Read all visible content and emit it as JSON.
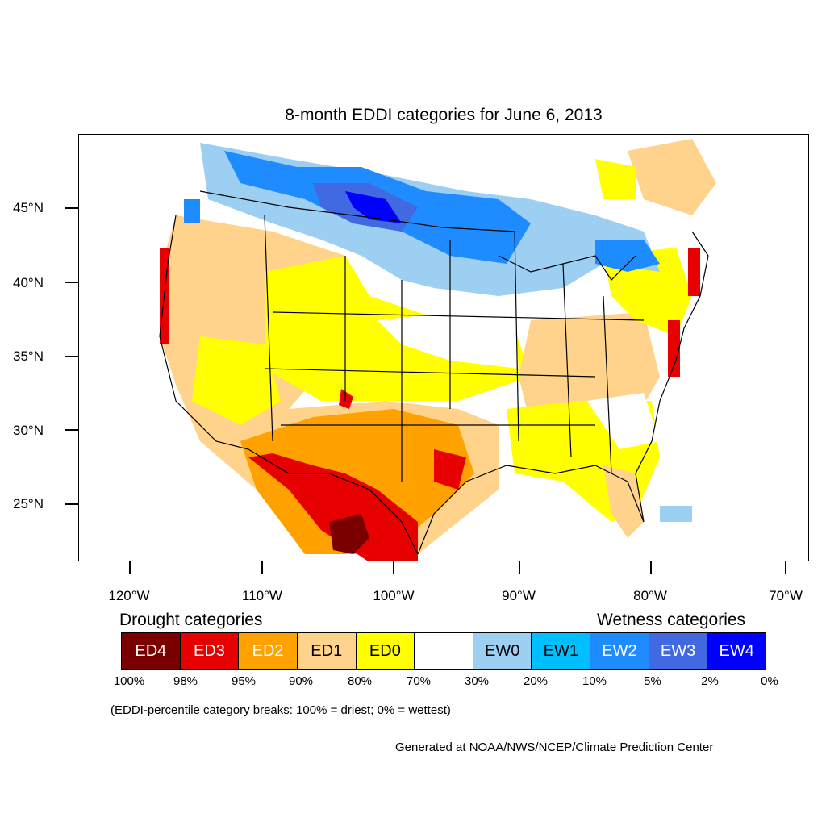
{
  "title": "8-month EDDI categories for June 6, 2013",
  "map": {
    "lat_labels": [
      "45°N",
      "40°N",
      "35°N",
      "30°N",
      "25°N"
    ],
    "lon_labels": [
      "120°W",
      "110°W",
      "100°W",
      "90°W",
      "80°W",
      "70°W"
    ],
    "drought_title": "Drought categories",
    "wetness_title": "Wetness categories",
    "categories": [
      {
        "label": "ED4",
        "color": "#7a0000",
        "text_color": "#ffffff"
      },
      {
        "label": "ED3",
        "color": "#e60000",
        "text_color": "#ffffff"
      },
      {
        "label": "ED2",
        "color": "#ffa200",
        "text_color": "#ffffff"
      },
      {
        "label": "ED1",
        "color": "#ffd38c",
        "text_color": "#000000"
      },
      {
        "label": "ED0",
        "color": "#ffff00",
        "text_color": "#000000"
      },
      {
        "label": "",
        "color": "#ffffff",
        "text_color": "#000000"
      },
      {
        "label": "EW0",
        "color": "#9ccff2",
        "text_color": "#000000"
      },
      {
        "label": "EW1",
        "color": "#00bfff",
        "text_color": "#000000"
      },
      {
        "label": "EW2",
        "color": "#1e8cff",
        "text_color": "#ffffff"
      },
      {
        "label": "EW3",
        "color": "#4169e1",
        "text_color": "#ffffff"
      },
      {
        "label": "EW4",
        "color": "#0000ff",
        "text_color": "#ffffff"
      }
    ],
    "breaks": [
      "100%",
      "98%",
      "95%",
      "90%",
      "80%",
      "70%",
      "30%",
      "20%",
      "10%",
      "5%",
      "2%",
      "0%"
    ],
    "note": "(EDDI-percentile category breaks: 100% = driest; 0% = wettest)",
    "credit": "Generated at NOAA/NWS/NCEP/Climate Prediction Center"
  }
}
